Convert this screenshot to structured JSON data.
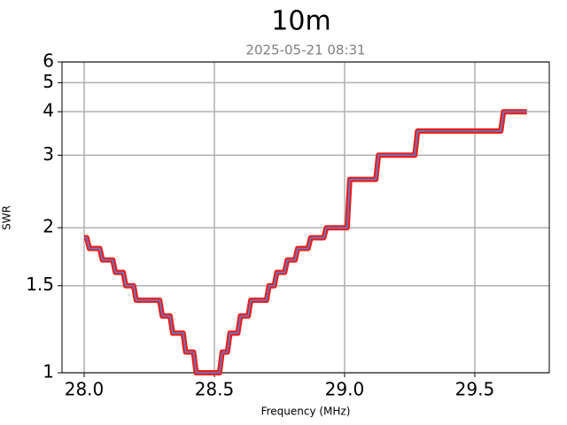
{
  "chart_data": {
    "type": "line",
    "title": "10m",
    "subtitle": "2025-05-21 08:31",
    "x_label": "Frequency (MHz)",
    "y_label": "SWR",
    "yscale": "swr",
    "xlim": [
      27.915,
      29.786
    ],
    "ylim": [
      1,
      6
    ],
    "xticks": [
      {
        "value": 28.0,
        "label": "28.0"
      },
      {
        "value": 28.5,
        "label": "28.5"
      },
      {
        "value": 29.0,
        "label": "29.0"
      },
      {
        "value": 29.5,
        "label": "29.5"
      }
    ],
    "yticks": [
      1,
      1.5,
      2,
      3,
      4,
      5,
      6
    ],
    "grid": true,
    "series": [
      {
        "color": "#e8201c",
        "inner_color": "#5a7fd8",
        "x": [
          28.0,
          28.01,
          28.02,
          28.06,
          28.07,
          28.11,
          28.12,
          28.15,
          28.16,
          28.19,
          28.2,
          28.29,
          28.3,
          28.33,
          28.34,
          28.38,
          28.39,
          28.42,
          28.43,
          28.52,
          28.53,
          28.55,
          28.56,
          28.59,
          28.6,
          28.63,
          28.64,
          28.7,
          28.71,
          28.73,
          28.74,
          28.77,
          28.78,
          28.81,
          28.82,
          28.86,
          28.87,
          28.92,
          28.93,
          29.01,
          29.02,
          29.12,
          29.13,
          29.27,
          29.28,
          29.6,
          29.61,
          29.7
        ],
        "values": [
          1.9,
          1.9,
          1.8,
          1.8,
          1.7,
          1.7,
          1.6,
          1.6,
          1.5,
          1.5,
          1.4,
          1.4,
          1.3,
          1.3,
          1.2,
          1.2,
          1.1,
          1.1,
          1.0,
          1.0,
          1.1,
          1.1,
          1.2,
          1.2,
          1.3,
          1.3,
          1.4,
          1.4,
          1.5,
          1.5,
          1.6,
          1.6,
          1.7,
          1.7,
          1.8,
          1.8,
          1.9,
          1.9,
          2.0,
          2.0,
          2.6,
          2.6,
          3.0,
          3.0,
          3.5,
          3.5,
          4.0,
          4.0
        ]
      }
    ]
  }
}
